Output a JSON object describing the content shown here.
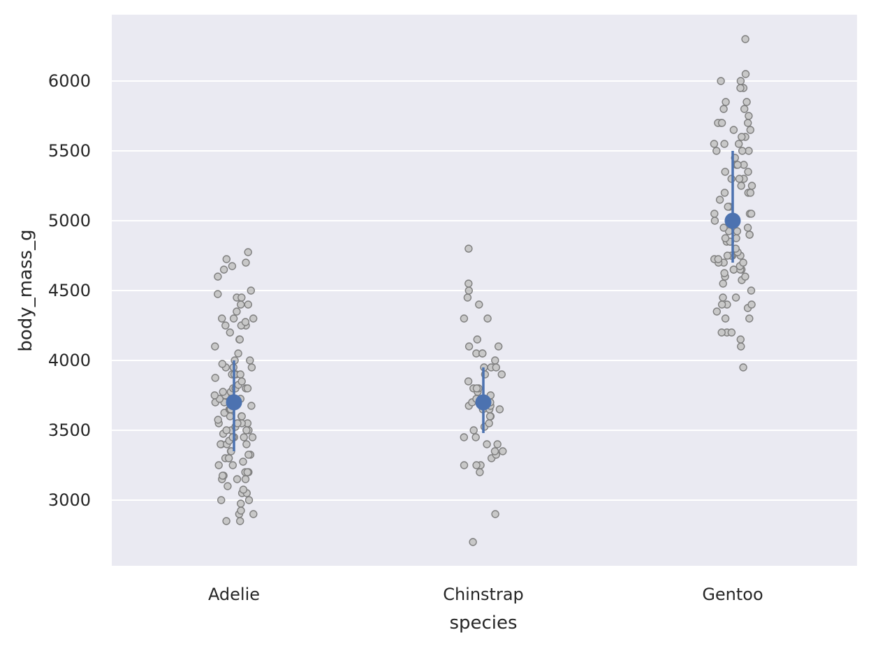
{
  "chart_data": {
    "type": "scatter",
    "subtype": "strip plot with point estimate and error bars",
    "title": "",
    "xlabel": "species",
    "ylabel": "body_mass_g",
    "categories": [
      "Adelie",
      "Chinstrap",
      "Gentoo"
    ],
    "ylim": [
      2520,
      6460
    ],
    "yticks": [
      3000,
      3500,
      4000,
      4500,
      5000,
      5500,
      6000
    ],
    "grid": true,
    "legend": "none",
    "colors": {
      "background": "#eaeaf2",
      "grid": "#ffffff",
      "points_fill": "#c8c8c8",
      "points_edge": "#7f7f7f",
      "estimate": "#4c72b0"
    },
    "estimates": [
      {
        "category": "Adelie",
        "center": 3700,
        "low": 3350,
        "high": 4000
      },
      {
        "category": "Chinstrap",
        "center": 3700,
        "low": 3480,
        "high": 3950
      },
      {
        "category": "Gentoo",
        "center": 5000,
        "low": 4700,
        "high": 5500
      }
    ],
    "points": {
      "Adelie": [
        2850,
        2850,
        2900,
        2900,
        2925,
        2975,
        3000,
        3000,
        3050,
        3050,
        3075,
        3100,
        3150,
        3150,
        3150,
        3175,
        3175,
        3200,
        3200,
        3200,
        3250,
        3250,
        3275,
        3300,
        3300,
        3300,
        3325,
        3325,
        3350,
        3350,
        3400,
        3400,
        3400,
        3400,
        3425,
        3450,
        3450,
        3450,
        3450,
        3475,
        3500,
        3500,
        3500,
        3500,
        3525,
        3550,
        3550,
        3550,
        3550,
        3575,
        3600,
        3600,
        3600,
        3625,
        3650,
        3650,
        3650,
        3675,
        3700,
        3700,
        3700,
        3725,
        3725,
        3750,
        3750,
        3750,
        3775,
        3775,
        3800,
        3800,
        3800,
        3800,
        3825,
        3850,
        3875,
        3900,
        3900,
        3900,
        3900,
        3950,
        3950,
        3950,
        3975,
        4000,
        4000,
        4050,
        4100,
        4150,
        4150,
        4200,
        4250,
        4250,
        4250,
        4275,
        4300,
        4300,
        4300,
        4350,
        4400,
        4400,
        4450,
        4450,
        4475,
        4500,
        4600,
        4650,
        4675,
        4700,
        4725,
        4775
      ],
      "Chinstrap": [
        2700,
        2900,
        3200,
        3250,
        3250,
        3250,
        3300,
        3325,
        3350,
        3350,
        3400,
        3400,
        3450,
        3450,
        3500,
        3525,
        3550,
        3600,
        3600,
        3650,
        3650,
        3650,
        3675,
        3675,
        3700,
        3700,
        3700,
        3700,
        3725,
        3750,
        3775,
        3800,
        3800,
        3800,
        3850,
        3900,
        3900,
        3950,
        3950,
        3950,
        4000,
        4050,
        4050,
        4050,
        4100,
        4100,
        4150,
        4300,
        4300,
        4400,
        4450,
        4500,
        4550,
        4800
      ],
      "Gentoo": [
        3950,
        4100,
        4150,
        4200,
        4200,
        4200,
        4300,
        4300,
        4350,
        4375,
        4400,
        4400,
        4400,
        4450,
        4450,
        4500,
        4550,
        4575,
        4600,
        4600,
        4625,
        4650,
        4650,
        4650,
        4650,
        4675,
        4700,
        4700,
        4700,
        4725,
        4725,
        4750,
        4750,
        4750,
        4750,
        4775,
        4800,
        4850,
        4850,
        4850,
        4875,
        4875,
        4900,
        4900,
        4925,
        4925,
        4950,
        4950,
        5000,
        5000,
        5000,
        5050,
        5050,
        5050,
        5100,
        5100,
        5150,
        5200,
        5200,
        5200,
        5250,
        5250,
        5300,
        5300,
        5300,
        5350,
        5350,
        5400,
        5400,
        5400,
        5450,
        5500,
        5500,
        5500,
        5550,
        5550,
        5550,
        5600,
        5600,
        5650,
        5650,
        5700,
        5700,
        5700,
        5700,
        5750,
        5800,
        5800,
        5850,
        5850,
        5950,
        5950,
        6000,
        6000,
        6050,
        6300
      ]
    }
  }
}
